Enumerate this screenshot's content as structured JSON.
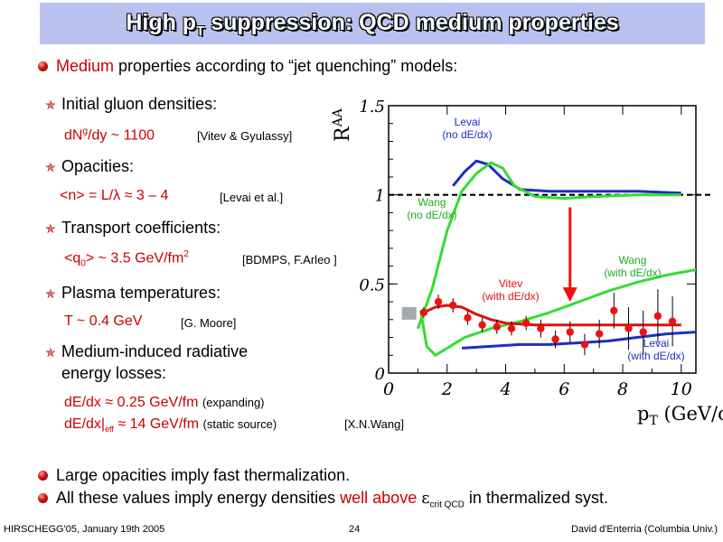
{
  "title": {
    "main": "High p",
    "sub": "T",
    "rest": " suppression: QCD medium properties"
  },
  "intro": {
    "red": "Medium",
    "rest": " properties according to “jet quenching” models:"
  },
  "items": [
    {
      "head": "Initial gluon densities:",
      "value": "dN",
      "value_sup": "g",
      "value_rest": "/dy ~ 1100",
      "ref": "[Vitev & Gyulassy]"
    },
    {
      "head": "Opacities:",
      "value": "<n> = L/λ  ≈ 3 – 4",
      "ref": "[Levai et al.]"
    },
    {
      "head": "Transport coefficients:",
      "value_a": "<q",
      "value_sub": "0",
      "value_b": "> ~ 3.5 GeV/fm",
      "value_sup": "2",
      "ref": "[BDMPS, F.Arleo ]"
    },
    {
      "head": "Plasma temperatures:",
      "value": "T ~ 0.4 GeV",
      "ref": "[G. Moore]"
    },
    {
      "head1": "Medium-induced radiative",
      "head2": "energy losses:",
      "line1": "dE/dx ≈ 0.25 GeV/fm",
      "line1_note": "(expanding)",
      "line2_a": "dE/dx|",
      "line2_sub": "eff",
      "line2_b": " ≈ 14 GeV/fm",
      "line2_note": "(static source)",
      "ref": "[X.N.Wang]"
    }
  ],
  "bullets": [
    {
      "text": "Large opacities imply fast thermalization."
    },
    {
      "a": "All these values imply energy densities ",
      "red": "well above ",
      "eps": "ε",
      "sub": "crit QCD",
      "b": " in thermalized syst."
    }
  ],
  "footer": {
    "left": "HIRSCHEGG'05, January 19th 2005",
    "center": "24",
    "right": "David d'Enterria (Columbia Univ.)"
  },
  "colors": {
    "title_bg": "#b9c1ee",
    "accent": "#cc0000",
    "blue": "#1a2fbf",
    "green": "#33dd33",
    "red": "#dd1111"
  },
  "chart_data": {
    "type": "line",
    "xlabel": "p",
    "xlabel_sub": "T",
    "xlabel_unit": " (GeV/c)",
    "ylabel": "R",
    "ylabel_sub": "AA",
    "xlim": [
      0,
      10.5
    ],
    "ylim": [
      0,
      1.5
    ],
    "x_ticks": [
      "0",
      "2",
      "4",
      "6",
      "8",
      "10"
    ],
    "y_ticks": [
      "0",
      "0.5",
      "1",
      "1.5"
    ],
    "reference_line": 1.0,
    "annotations": {
      "levai_top": [
        "Levai",
        "(no dE/dx)"
      ],
      "wang_top": [
        "Wang",
        "(no dE/dx)"
      ],
      "wang_bottom": [
        "Wang",
        "(with dE/dx)"
      ],
      "vitev": [
        "Vitev",
        "(with dE/dx)"
      ],
      "levai_bottom": [
        "Levai",
        "(with dE/dx)"
      ]
    },
    "series": [
      {
        "name": "Levai (no dE/dx)",
        "color": "#1a2fbf",
        "x": [
          2.2,
          2.6,
          3.0,
          3.4,
          3.9,
          4.5,
          5.5,
          7,
          8.5,
          10
        ],
        "y": [
          1.05,
          1.13,
          1.19,
          1.17,
          1.09,
          1.03,
          1.02,
          1.02,
          1.02,
          1.01
        ]
      },
      {
        "name": "Wang (no dE/dx)",
        "color": "#33dd33",
        "x": [
          1.0,
          1.5,
          2.0,
          2.5,
          3.0,
          3.5,
          3.9,
          4.3,
          5.0,
          6.0,
          7.0,
          8.5,
          10.0
        ],
        "y": [
          0.25,
          0.48,
          0.8,
          1.02,
          1.12,
          1.18,
          1.15,
          1.05,
          0.99,
          0.98,
          0.99,
          1.0,
          1.0
        ]
      },
      {
        "name": "Wang (with dE/dx)",
        "color": "#33dd33",
        "x": [
          1.1,
          1.3,
          1.6,
          2.0,
          2.6,
          3.5,
          4.5,
          5.5,
          6.5,
          7.5,
          8.5,
          9.5,
          10.5
        ],
        "y": [
          0.35,
          0.15,
          0.1,
          0.14,
          0.2,
          0.25,
          0.29,
          0.34,
          0.4,
          0.46,
          0.51,
          0.55,
          0.58
        ]
      },
      {
        "name": "Vitev (with dE/dx)",
        "color": "#dd1111",
        "x": [
          1.2,
          1.6,
          2.0,
          2.5,
          3.0,
          3.5,
          4.0,
          5.0,
          6.0,
          7.0,
          8.0,
          9.0,
          10.0
        ],
        "y": [
          0.34,
          0.37,
          0.38,
          0.37,
          0.33,
          0.3,
          0.28,
          0.27,
          0.27,
          0.27,
          0.27,
          0.27,
          0.27
        ]
      },
      {
        "name": "Levai (with dE/dx)",
        "color": "#1a2fbf",
        "x": [
          2.5,
          3.5,
          4.5,
          5.5,
          6.5,
          7.5,
          8.5,
          9.5,
          10.5
        ],
        "y": [
          0.14,
          0.15,
          0.16,
          0.16,
          0.17,
          0.18,
          0.2,
          0.22,
          0.23
        ]
      }
    ],
    "points": {
      "x": [
        1.2,
        1.7,
        2.2,
        2.7,
        3.2,
        3.7,
        4.2,
        4.7,
        5.2,
        5.7,
        6.2,
        6.7,
        7.2,
        7.7,
        8.2,
        8.7,
        9.2,
        9.7
      ],
      "y": [
        0.34,
        0.4,
        0.38,
        0.31,
        0.27,
        0.26,
        0.25,
        0.28,
        0.25,
        0.19,
        0.23,
        0.16,
        0.22,
        0.35,
        0.25,
        0.23,
        0.32,
        0.29
      ],
      "err": [
        0.03,
        0.04,
        0.04,
        0.04,
        0.04,
        0.04,
        0.04,
        0.04,
        0.05,
        0.05,
        0.06,
        0.06,
        0.08,
        0.1,
        0.12,
        0.12,
        0.15,
        0.14
      ]
    },
    "arrow": {
      "x": 6.2,
      "y_from": 0.93,
      "y_to": 0.4
    }
  }
}
